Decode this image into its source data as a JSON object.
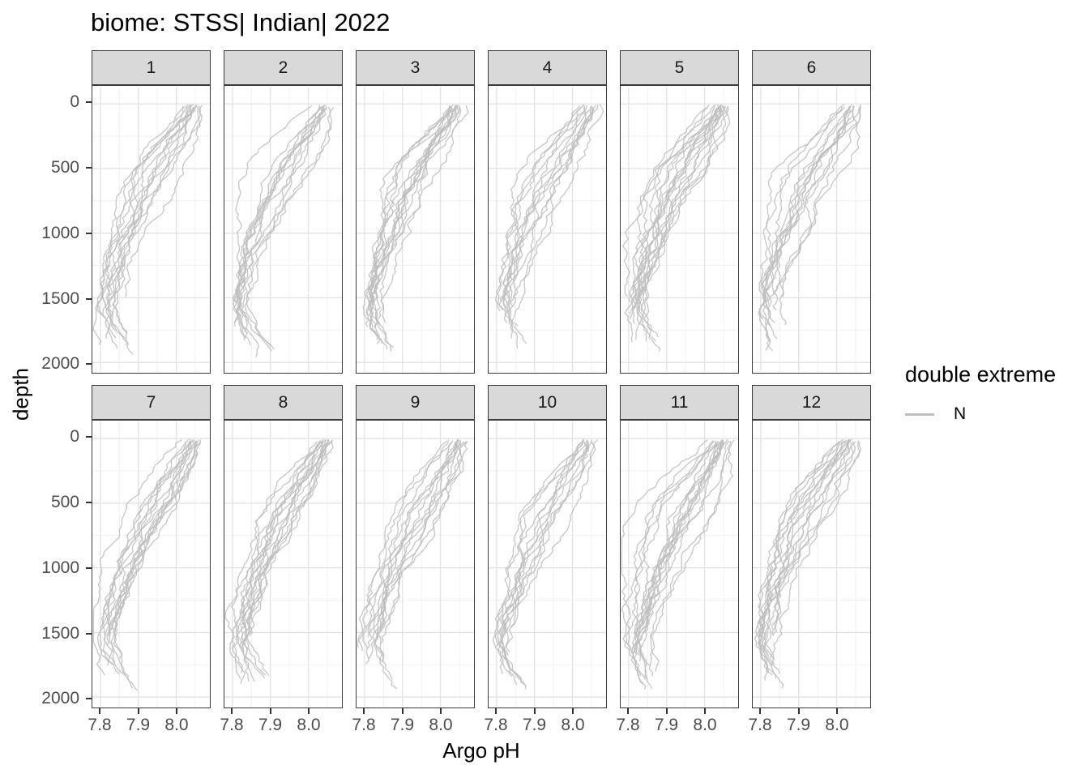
{
  "chart_data": {
    "type": "line",
    "title": "biome: STSS| Indian| 2022",
    "xlabel": "Argo pH",
    "ylabel": "depth",
    "x_ticks": [
      7.8,
      7.9,
      8.0
    ],
    "x_tick_labels": [
      "7.8",
      "7.9",
      "8.0"
    ],
    "x_minor_ticks": [
      7.85,
      7.95,
      8.05
    ],
    "y_ticks": [
      0,
      500,
      1000,
      1500,
      2000
    ],
    "y_tick_labels": [
      "0",
      "500",
      "1000",
      "1500",
      "2000"
    ],
    "y_minor_ticks": [
      250,
      750,
      1250,
      1750
    ],
    "xlim": [
      7.779,
      8.089
    ],
    "ylim": [
      -130,
      2070
    ],
    "y_axis_reversed": true,
    "grid": {
      "major": true,
      "minor": true
    },
    "legend": {
      "title": "double extreme",
      "position": "right",
      "entries": [
        {
          "label": "N",
          "color": "#bdbdbd"
        }
      ]
    },
    "facets": [
      {
        "label": "1",
        "n_profiles": 14,
        "seed": 11
      },
      {
        "label": "2",
        "n_profiles": 13,
        "seed": 22
      },
      {
        "label": "3",
        "n_profiles": 15,
        "seed": 33
      },
      {
        "label": "4",
        "n_profiles": 13,
        "seed": 44
      },
      {
        "label": "5",
        "n_profiles": 18,
        "seed": 55
      },
      {
        "label": "6",
        "n_profiles": 14,
        "seed": 66
      },
      {
        "label": "7",
        "n_profiles": 15,
        "seed": 77
      },
      {
        "label": "8",
        "n_profiles": 16,
        "seed": 88
      },
      {
        "label": "9",
        "n_profiles": 14,
        "seed": 99
      },
      {
        "label": "10",
        "n_profiles": 12,
        "seed": 110
      },
      {
        "label": "11",
        "n_profiles": 18,
        "seed": 121
      },
      {
        "label": "12",
        "n_profiles": 16,
        "seed": 132
      }
    ],
    "profile_model": {
      "comment_visible_only": "estimated mean Argo pH vs depth read from the panels; each facet shows many grey float profiles scattered around this mean",
      "depths": [
        0,
        100,
        200,
        300,
        400,
        500,
        600,
        700,
        800,
        900,
        1000,
        1100,
        1200,
        1300,
        1400,
        1500,
        1600,
        1700,
        1800,
        1900,
        1960
      ],
      "ph_mean": [
        8.045,
        8.032,
        8.012,
        7.993,
        7.974,
        7.955,
        7.935,
        7.916,
        7.9,
        7.885,
        7.87,
        7.856,
        7.845,
        7.835,
        7.827,
        7.82,
        7.816,
        7.815,
        7.818,
        7.824,
        7.828
      ],
      "ph_spread": [
        0.015,
        0.022,
        0.03,
        0.036,
        0.04,
        0.042,
        0.042,
        0.04,
        0.038,
        0.035,
        0.032,
        0.028,
        0.025,
        0.022,
        0.019,
        0.017,
        0.016,
        0.016,
        0.018,
        0.022,
        0.025
      ],
      "depth_max_range": [
        1460,
        1980
      ]
    },
    "colors": {
      "series": "#bdbdbd",
      "strip_fill": "#d9d9d9",
      "strip_border": "#3b3b3b",
      "panel_border": "#3b3b3b",
      "grid_major": "#e3e3e3",
      "grid_minor": "#f0f0f0",
      "tick": "#333333",
      "tick_label": "#4d4d4d",
      "text": "#000000",
      "background": "#ffffff"
    }
  }
}
